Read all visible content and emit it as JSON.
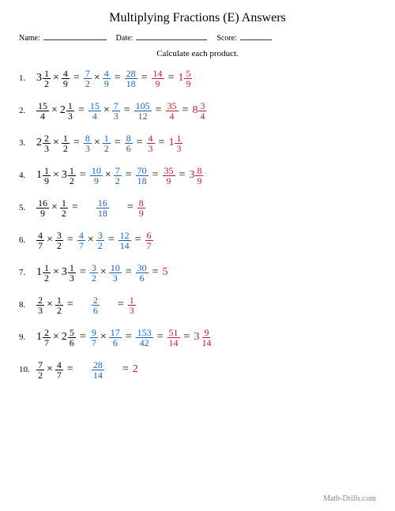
{
  "title": "Multiplying Fractions (E) Answers",
  "header": {
    "name_label": "Name:",
    "date_label": "Date:",
    "score_label": "Score:",
    "name_w": 80,
    "date_w": 90,
    "score_w": 40
  },
  "subtitle": "Calculate each product.",
  "colors": {
    "blue": "#1a5fb4",
    "red": "#c01c28",
    "black": "#000"
  },
  "footer": "Math-Drills.com",
  "problems": [
    {
      "n": "1.",
      "terms": [
        {
          "t": "mix",
          "w": "3",
          "n": "1",
          "d": "2",
          "c": "black"
        },
        {
          "t": "op",
          "v": "×"
        },
        {
          "t": "f",
          "n": "4",
          "d": "9",
          "c": "black"
        },
        {
          "t": "op",
          "v": "="
        },
        {
          "t": "f",
          "n": "7",
          "d": "2",
          "c": "blue"
        },
        {
          "t": "op",
          "v": "×"
        },
        {
          "t": "f",
          "n": "4",
          "d": "9",
          "c": "blue"
        },
        {
          "t": "op",
          "v": "="
        },
        {
          "t": "f",
          "n": "28",
          "d": "18",
          "c": "blue"
        },
        {
          "t": "op",
          "v": "="
        },
        {
          "t": "f",
          "n": "14",
          "d": "9",
          "c": "red"
        },
        {
          "t": "op",
          "v": "="
        },
        {
          "t": "mix",
          "w": "1",
          "n": "5",
          "d": "9",
          "c": "red"
        }
      ]
    },
    {
      "n": "2.",
      "terms": [
        {
          "t": "f",
          "n": "15",
          "d": "4",
          "c": "black"
        },
        {
          "t": "op",
          "v": "×"
        },
        {
          "t": "mix",
          "w": "2",
          "n": "1",
          "d": "3",
          "c": "black"
        },
        {
          "t": "op",
          "v": "="
        },
        {
          "t": "f",
          "n": "15",
          "d": "4",
          "c": "blue"
        },
        {
          "t": "op",
          "v": "×"
        },
        {
          "t": "f",
          "n": "7",
          "d": "3",
          "c": "blue"
        },
        {
          "t": "op",
          "v": "="
        },
        {
          "t": "f",
          "n": "105",
          "d": "12",
          "c": "blue"
        },
        {
          "t": "op",
          "v": "="
        },
        {
          "t": "f",
          "n": "35",
          "d": "4",
          "c": "red"
        },
        {
          "t": "op",
          "v": "="
        },
        {
          "t": "mix",
          "w": "8",
          "n": "3",
          "d": "4",
          "c": "red"
        }
      ]
    },
    {
      "n": "3.",
      "terms": [
        {
          "t": "mix",
          "w": "2",
          "n": "2",
          "d": "3",
          "c": "black"
        },
        {
          "t": "op",
          "v": "×"
        },
        {
          "t": "f",
          "n": "1",
          "d": "2",
          "c": "black"
        },
        {
          "t": "op",
          "v": "="
        },
        {
          "t": "f",
          "n": "8",
          "d": "3",
          "c": "blue"
        },
        {
          "t": "op",
          "v": "×"
        },
        {
          "t": "f",
          "n": "1",
          "d": "2",
          "c": "blue"
        },
        {
          "t": "op",
          "v": "="
        },
        {
          "t": "f",
          "n": "8",
          "d": "6",
          "c": "blue"
        },
        {
          "t": "op",
          "v": "="
        },
        {
          "t": "f",
          "n": "4",
          "d": "3",
          "c": "red"
        },
        {
          "t": "op",
          "v": "="
        },
        {
          "t": "mix",
          "w": "1",
          "n": "1",
          "d": "3",
          "c": "red"
        }
      ]
    },
    {
      "n": "4.",
      "terms": [
        {
          "t": "mix",
          "w": "1",
          "n": "1",
          "d": "9",
          "c": "black"
        },
        {
          "t": "op",
          "v": "×"
        },
        {
          "t": "mix",
          "w": "3",
          "n": "1",
          "d": "2",
          "c": "black"
        },
        {
          "t": "op",
          "v": "="
        },
        {
          "t": "f",
          "n": "10",
          "d": "9",
          "c": "blue"
        },
        {
          "t": "op",
          "v": "×"
        },
        {
          "t": "f",
          "n": "7",
          "d": "2",
          "c": "blue"
        },
        {
          "t": "op",
          "v": "="
        },
        {
          "t": "f",
          "n": "70",
          "d": "18",
          "c": "blue"
        },
        {
          "t": "op",
          "v": "="
        },
        {
          "t": "f",
          "n": "35",
          "d": "9",
          "c": "red"
        },
        {
          "t": "op",
          "v": "="
        },
        {
          "t": "mix",
          "w": "3",
          "n": "8",
          "d": "9",
          "c": "red"
        }
      ]
    },
    {
      "n": "5.",
      "terms": [
        {
          "t": "f",
          "n": "16",
          "d": "9",
          "c": "black"
        },
        {
          "t": "op",
          "v": "×"
        },
        {
          "t": "f",
          "n": "1",
          "d": "2",
          "c": "black"
        },
        {
          "t": "op",
          "v": "="
        },
        {
          "t": "sp"
        },
        {
          "t": "f",
          "n": "16",
          "d": "18",
          "c": "blue"
        },
        {
          "t": "sp"
        },
        {
          "t": "op",
          "v": "="
        },
        {
          "t": "f",
          "n": "8",
          "d": "9",
          "c": "red"
        }
      ]
    },
    {
      "n": "6.",
      "terms": [
        {
          "t": "f",
          "n": "4",
          "d": "7",
          "c": "black"
        },
        {
          "t": "op",
          "v": "×"
        },
        {
          "t": "f",
          "n": "3",
          "d": "2",
          "c": "black"
        },
        {
          "t": "op",
          "v": "="
        },
        {
          "t": "f",
          "n": "4",
          "d": "7",
          "c": "blue"
        },
        {
          "t": "op",
          "v": "×"
        },
        {
          "t": "f",
          "n": "3",
          "d": "2",
          "c": "blue"
        },
        {
          "t": "op",
          "v": "="
        },
        {
          "t": "f",
          "n": "12",
          "d": "14",
          "c": "blue"
        },
        {
          "t": "op",
          "v": "="
        },
        {
          "t": "f",
          "n": "6",
          "d": "7",
          "c": "red"
        }
      ]
    },
    {
      "n": "7.",
      "terms": [
        {
          "t": "mix",
          "w": "1",
          "n": "1",
          "d": "2",
          "c": "black"
        },
        {
          "t": "op",
          "v": "×"
        },
        {
          "t": "mix",
          "w": "3",
          "n": "1",
          "d": "3",
          "c": "black"
        },
        {
          "t": "op",
          "v": "="
        },
        {
          "t": "f",
          "n": "3",
          "d": "2",
          "c": "blue"
        },
        {
          "t": "op",
          "v": "×"
        },
        {
          "t": "f",
          "n": "10",
          "d": "3",
          "c": "blue"
        },
        {
          "t": "op",
          "v": "="
        },
        {
          "t": "f",
          "n": "30",
          "d": "6",
          "c": "blue"
        },
        {
          "t": "op",
          "v": "="
        },
        {
          "t": "int",
          "v": "5",
          "c": "red"
        }
      ]
    },
    {
      "n": "8.",
      "terms": [
        {
          "t": "f",
          "n": "2",
          "d": "3",
          "c": "black"
        },
        {
          "t": "op",
          "v": "×"
        },
        {
          "t": "f",
          "n": "1",
          "d": "2",
          "c": "black"
        },
        {
          "t": "op",
          "v": "="
        },
        {
          "t": "sp"
        },
        {
          "t": "f",
          "n": "2",
          "d": "6",
          "c": "blue"
        },
        {
          "t": "sp"
        },
        {
          "t": "op",
          "v": "="
        },
        {
          "t": "f",
          "n": "1",
          "d": "3",
          "c": "red"
        }
      ]
    },
    {
      "n": "9.",
      "terms": [
        {
          "t": "mix",
          "w": "1",
          "n": "2",
          "d": "7",
          "c": "black"
        },
        {
          "t": "op",
          "v": "×"
        },
        {
          "t": "mix",
          "w": "2",
          "n": "5",
          "d": "6",
          "c": "black"
        },
        {
          "t": "op",
          "v": "="
        },
        {
          "t": "f",
          "n": "9",
          "d": "7",
          "c": "blue"
        },
        {
          "t": "op",
          "v": "×"
        },
        {
          "t": "f",
          "n": "17",
          "d": "6",
          "c": "blue"
        },
        {
          "t": "op",
          "v": "="
        },
        {
          "t": "f",
          "n": "153",
          "d": "42",
          "c": "blue"
        },
        {
          "t": "op",
          "v": "="
        },
        {
          "t": "f",
          "n": "51",
          "d": "14",
          "c": "red"
        },
        {
          "t": "op",
          "v": "="
        },
        {
          "t": "mix",
          "w": "3",
          "n": "9",
          "d": "14",
          "c": "red"
        }
      ]
    },
    {
      "n": "10.",
      "terms": [
        {
          "t": "f",
          "n": "7",
          "d": "2",
          "c": "black"
        },
        {
          "t": "op",
          "v": "×"
        },
        {
          "t": "f",
          "n": "4",
          "d": "7",
          "c": "black"
        },
        {
          "t": "op",
          "v": "="
        },
        {
          "t": "sp"
        },
        {
          "t": "f",
          "n": "28",
          "d": "14",
          "c": "blue"
        },
        {
          "t": "sp"
        },
        {
          "t": "op",
          "v": "="
        },
        {
          "t": "int",
          "v": "2",
          "c": "red"
        }
      ]
    }
  ]
}
